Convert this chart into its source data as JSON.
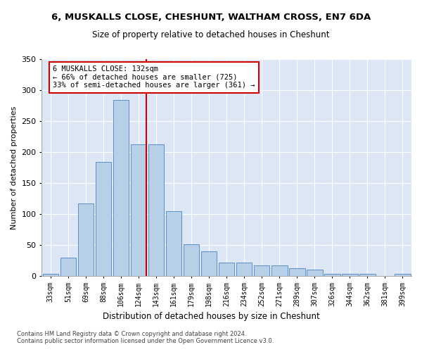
{
  "title1": "6, MUSKALLS CLOSE, CHESHUNT, WALTHAM CROSS, EN7 6DA",
  "title2": "Size of property relative to detached houses in Cheshunt",
  "xlabel": "Distribution of detached houses by size in Cheshunt",
  "ylabel": "Number of detached properties",
  "annotation_title": "6 MUSKALLS CLOSE: 132sqm",
  "annotation_line1": "← 66% of detached houses are smaller (725)",
  "annotation_line2": "33% of semi-detached houses are larger (361) →",
  "footer1": "Contains HM Land Registry data © Crown copyright and database right 2024.",
  "footer2": "Contains public sector information licensed under the Open Government Licence v3.0.",
  "bar_color": "#b8cfe8",
  "bar_edge_color": "#5b8fc9",
  "marker_line_color": "#cc0000",
  "background_color": "#dce6f5",
  "categories": [
    "33sqm",
    "51sqm",
    "69sqm",
    "88sqm",
    "106sqm",
    "124sqm",
    "143sqm",
    "161sqm",
    "179sqm",
    "198sqm",
    "216sqm",
    "234sqm",
    "252sqm",
    "271sqm",
    "289sqm",
    "307sqm",
    "326sqm",
    "344sqm",
    "362sqm",
    "381sqm",
    "399sqm"
  ],
  "values": [
    4,
    30,
    117,
    184,
    284,
    213,
    213,
    105,
    51,
    40,
    22,
    22,
    17,
    17,
    13,
    10,
    4,
    4,
    4,
    0,
    4
  ],
  "marker_bin_index": 5,
  "ylim": [
    0,
    350
  ],
  "yticks": [
    0,
    50,
    100,
    150,
    200,
    250,
    300,
    350
  ]
}
